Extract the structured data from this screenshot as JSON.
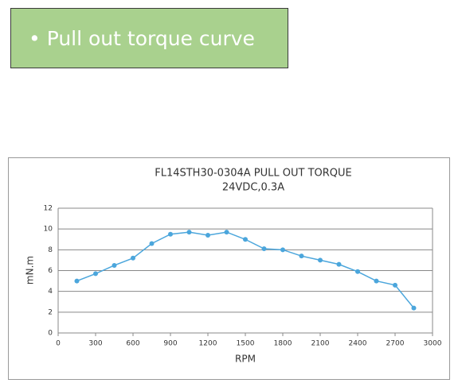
{
  "header": {
    "text": "• Pull out torque curve"
  },
  "chart_data": {
    "type": "line",
    "title": "FL14STH30-0304A PULL OUT TORQUE",
    "subtitle": "24VDC,0.3A",
    "x_label": "RPM",
    "y_label": "mN.m",
    "x": [
      150,
      300,
      450,
      600,
      750,
      900,
      1050,
      1200,
      1350,
      1500,
      1650,
      1800,
      1950,
      2100,
      2250,
      2400,
      2550,
      2700,
      2850
    ],
    "series": [
      {
        "name": "Pull out torque",
        "color": "#4ba6dc",
        "values": [
          5.0,
          5.7,
          6.5,
          7.2,
          8.6,
          9.5,
          9.7,
          9.4,
          9.7,
          9.0,
          8.1,
          8.0,
          7.4,
          7.0,
          6.6,
          5.9,
          5.0,
          4.6,
          2.4
        ]
      }
    ],
    "xlim": [
      0,
      3000
    ],
    "xticks": [
      0,
      300,
      600,
      900,
      1200,
      1500,
      1800,
      2100,
      2400,
      2700,
      3000
    ],
    "ylim": [
      0,
      12
    ],
    "yticks": [
      0,
      2,
      4,
      6,
      8,
      10,
      12
    ],
    "grid": true
  }
}
